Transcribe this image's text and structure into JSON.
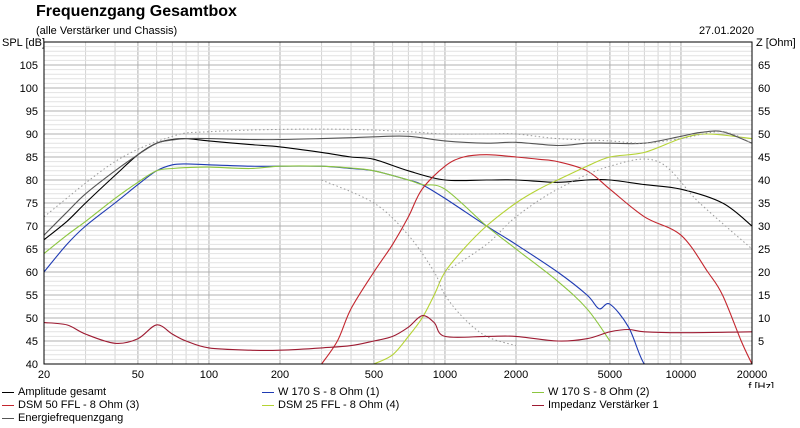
{
  "header": {
    "title": "Frequenzgang Gesamtbox",
    "subtitle": "(alle Verstärker und Chassis)",
    "date": "27.01.2020"
  },
  "colors": {
    "amplitude": "#000000",
    "w170_1": "#1f3bb3",
    "w170_2": "#8cc63f",
    "dsm50": "#c4262e",
    "dsm25": "#b5d334",
    "impedance": "#9e1b32",
    "energy": "#555555"
  },
  "chart_data": {
    "type": "line",
    "title": "Frequenzgang Gesamtbox",
    "xlabel": "f [Hz]",
    "ylabel_left": "SPL [dB]",
    "ylabel_right": "Z [Ohm]",
    "x_scale": "log",
    "xlim": [
      20,
      20000
    ],
    "ylim_left": [
      40,
      110
    ],
    "ylim_right": [
      0,
      70
    ],
    "x_ticks": [
      20,
      50,
      100,
      200,
      500,
      1000,
      2000,
      5000,
      10000,
      20000
    ],
    "y_ticks_left": [
      40,
      45,
      50,
      55,
      60,
      65,
      70,
      75,
      80,
      85,
      90,
      95,
      100,
      105,
      110
    ],
    "y_ticks_right": [
      5,
      10,
      15,
      20,
      25,
      30,
      35,
      40,
      45,
      50,
      55,
      60,
      65,
      70
    ],
    "grid": true,
    "legend_position": "bottom",
    "series": [
      {
        "name": "Amplitude gesamt",
        "axis": "left",
        "color_key": "amplitude",
        "x": [
          20,
          25,
          30,
          40,
          50,
          60,
          70,
          80,
          100,
          150,
          200,
          300,
          400,
          500,
          700,
          1000,
          1500,
          2000,
          3000,
          4000,
          5000,
          7000,
          10000,
          15000,
          20000
        ],
        "y": [
          67,
          71,
          75,
          81,
          85.5,
          88,
          88.8,
          89,
          88.5,
          87.7,
          87.2,
          86,
          85,
          84.5,
          82,
          80,
          80,
          80,
          79.5,
          80,
          80,
          79,
          78,
          75,
          70
        ]
      },
      {
        "name": "W 170 S - 8 Ohm (1)",
        "axis": "left",
        "color_key": "w170_1",
        "x": [
          20,
          25,
          30,
          40,
          50,
          60,
          70,
          80,
          100,
          150,
          200,
          300,
          400,
          500,
          700,
          800,
          1000,
          1500,
          2000,
          3000,
          4000,
          4500,
          5000,
          6000,
          7000,
          8000
        ],
        "y": [
          60,
          66,
          70,
          75,
          79,
          82,
          83.3,
          83.5,
          83.3,
          83,
          83,
          83,
          82.5,
          82,
          80,
          79,
          76,
          70,
          66,
          60,
          55,
          52,
          53,
          48,
          40,
          40
        ]
      },
      {
        "name": "W 170 S - 8 Ohm (2)",
        "axis": "left",
        "color_key": "w170_2",
        "x": [
          20,
          25,
          30,
          40,
          50,
          60,
          70,
          80,
          100,
          150,
          200,
          300,
          400,
          500,
          700,
          800,
          1000,
          1500,
          2000,
          3000,
          4000,
          5000
        ],
        "y": [
          64,
          68,
          71,
          76,
          79.5,
          82,
          82.5,
          82.7,
          82.8,
          82.5,
          83,
          83,
          82.6,
          82,
          80,
          79,
          78,
          70,
          65,
          58,
          52,
          45
        ]
      },
      {
        "name": "DSM 50 FFL - 8 Ohm (3)",
        "axis": "left",
        "color_key": "dsm50",
        "x": [
          300,
          350,
          400,
          500,
          600,
          700,
          800,
          1000,
          1200,
          1500,
          2000,
          2500,
          3000,
          4000,
          5000,
          7000,
          10000,
          13000,
          15000,
          18000,
          20000
        ],
        "y": [
          40,
          45,
          52,
          60,
          66,
          72,
          78,
          83,
          85,
          85.5,
          85,
          84.5,
          84,
          82,
          78,
          72,
          68,
          60,
          55,
          45,
          40
        ]
      },
      {
        "name": "DSM 25 FFL - 8 Ohm (4)",
        "axis": "left",
        "color_key": "dsm25",
        "x": [
          500,
          600,
          700,
          800,
          900,
          1000,
          1200,
          1500,
          2000,
          2500,
          3000,
          4000,
          5000,
          7000,
          10000,
          13000,
          20000
        ],
        "y": [
          40,
          42,
          46,
          50,
          55,
          60,
          65,
          70,
          75,
          78,
          80,
          83,
          85,
          86,
          89,
          90,
          89
        ]
      },
      {
        "name": "Impedanz Verstärker 1",
        "axis": "right",
        "color_key": "impedance",
        "x": [
          20,
          25,
          30,
          40,
          50,
          60,
          70,
          80,
          100,
          150,
          200,
          300,
          400,
          500,
          600,
          700,
          800,
          900,
          1000,
          1500,
          2000,
          3000,
          4000,
          5000,
          6000,
          7000,
          10000,
          20000
        ],
        "y": [
          9,
          8.5,
          6.5,
          4.5,
          5.5,
          8.5,
          6.5,
          5,
          3.5,
          3,
          3,
          3.5,
          4,
          5,
          6,
          8,
          10.5,
          9,
          6,
          6,
          6,
          5,
          5.5,
          7,
          7.5,
          7,
          6.8,
          7
        ]
      },
      {
        "name": "Energiefrequenzgang",
        "axis": "left",
        "color_key": "energy",
        "x": [
          20,
          25,
          30,
          40,
          50,
          60,
          70,
          80,
          100,
          150,
          200,
          300,
          400,
          500,
          700,
          1000,
          1500,
          2000,
          3000,
          4000,
          5000,
          7000,
          10000,
          12000,
          15000,
          20000
        ],
        "y": [
          68,
          73,
          77,
          82,
          85.5,
          88,
          88.7,
          89,
          89,
          88.8,
          88.8,
          89,
          89.2,
          89.4,
          89.5,
          88.5,
          88,
          88.2,
          87.5,
          88,
          88,
          88,
          89.5,
          90.3,
          90.5,
          88
        ]
      }
    ]
  }
}
